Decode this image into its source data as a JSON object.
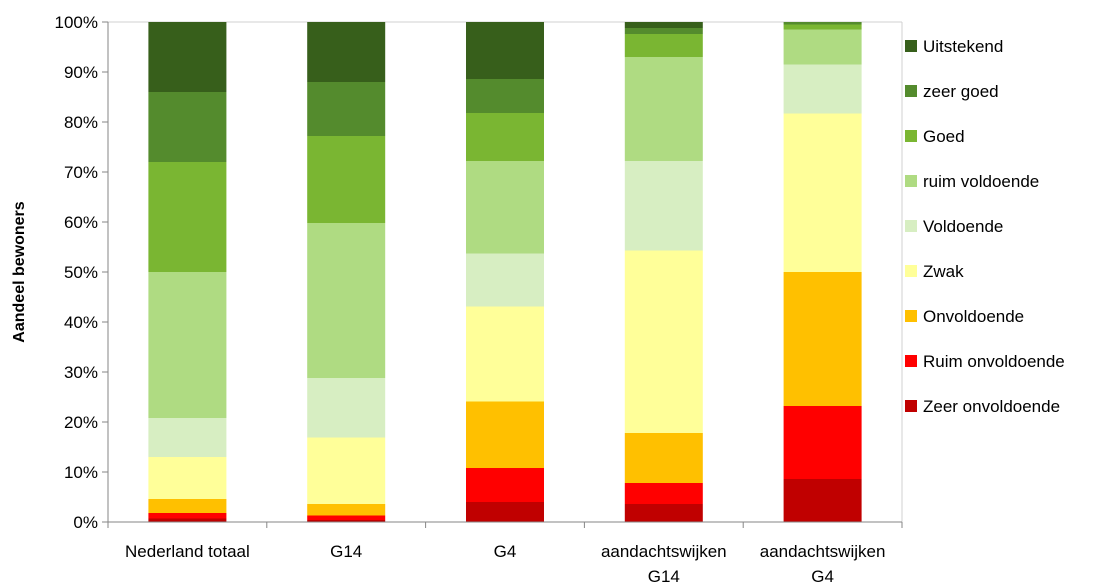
{
  "chart_data": {
    "type": "bar",
    "stacked": true,
    "percent": true,
    "title": "",
    "xlabel": "",
    "ylabel": "Aandeel bewoners",
    "ylim": [
      0,
      100
    ],
    "yticks": [
      "0%",
      "10%",
      "20%",
      "30%",
      "40%",
      "50%",
      "60%",
      "70%",
      "80%",
      "90%",
      "100%"
    ],
    "legend_position": "right",
    "categories": [
      [
        "Nederland totaal"
      ],
      [
        "G14"
      ],
      [
        "G4"
      ],
      [
        "aandachtswijken",
        "G14"
      ],
      [
        "aandachtswijken",
        "G4"
      ]
    ],
    "series": [
      {
        "name": "Zeer onvoldoende",
        "color": "#C00000",
        "values": [
          0.7,
          0.4,
          4.0,
          3.6,
          8.6
        ]
      },
      {
        "name": "Ruim onvoldoende",
        "color": "#FF0000",
        "values": [
          1.1,
          0.9,
          6.8,
          4.2,
          14.6
        ]
      },
      {
        "name": "Onvoldoende",
        "color": "#FFC000",
        "values": [
          2.8,
          2.3,
          13.3,
          10.0,
          26.8
        ]
      },
      {
        "name": "Zwak",
        "color": "#FFFF99",
        "values": [
          8.4,
          13.3,
          19.0,
          36.5,
          31.7
        ]
      },
      {
        "name": "Voldoende",
        "color": "#D7EEC2",
        "values": [
          7.8,
          11.9,
          10.6,
          17.9,
          9.8
        ]
      },
      {
        "name": "ruim voldoende",
        "color": "#AFDB82",
        "values": [
          29.2,
          31.0,
          18.5,
          20.8,
          7.0
        ]
      },
      {
        "name": "Goed",
        "color": "#7AB632",
        "values": [
          22.0,
          17.4,
          9.6,
          4.6,
          1.0
        ]
      },
      {
        "name": "zeer goed",
        "color": "#548B2D",
        "values": [
          14.0,
          10.8,
          6.8,
          1.2,
          0.5
        ]
      },
      {
        "name": "Uitstekend",
        "color": "#375F1B",
        "values": [
          14.0,
          12.0,
          11.4,
          1.2,
          0.0
        ]
      }
    ],
    "legend_order": [
      "Uitstekend",
      "zeer goed",
      "Goed",
      "ruim voldoende",
      "Voldoende",
      "Zwak",
      "Onvoldoende",
      "Ruim onvoldoende",
      "Zeer onvoldoende"
    ],
    "grid": false
  }
}
